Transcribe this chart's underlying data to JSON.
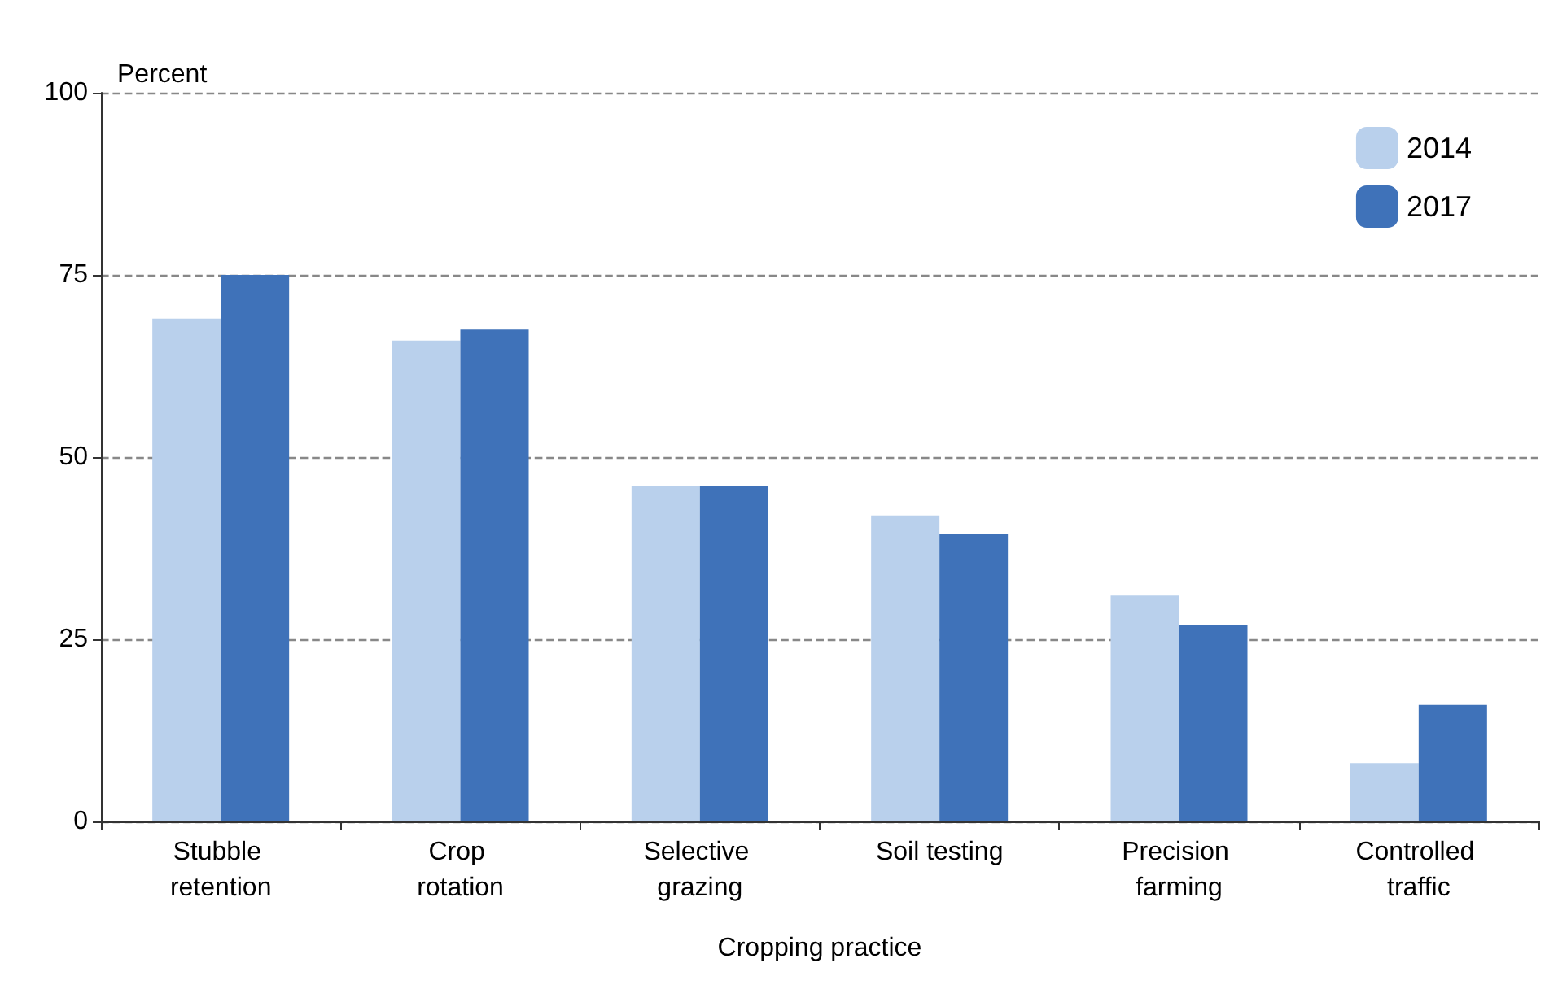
{
  "chart_data": {
    "type": "bar",
    "ylabel": "Percent",
    "xlabel": "Cropping practice",
    "categories": [
      "Stubble retention",
      "Crop rotation",
      "Selective grazing",
      "Soil testing",
      "Precision farming",
      "Controlled traffic"
    ],
    "series": [
      {
        "name": "2014",
        "color": "#b9d0ec",
        "values": [
          69,
          66,
          46,
          42,
          31,
          8
        ]
      },
      {
        "name": "2017",
        "color": "#3f72b9",
        "values": [
          75,
          67.5,
          46,
          39.5,
          27,
          16
        ]
      }
    ],
    "ylim": [
      0,
      100
    ],
    "yticks": [
      0,
      25,
      50,
      75,
      100
    ],
    "grid": "y",
    "legend": "top right"
  }
}
